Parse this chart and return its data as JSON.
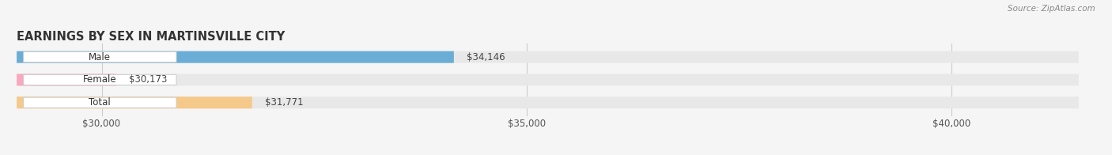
{
  "title": "EARNINGS BY SEX IN MARTINSVILLE CITY",
  "source": "Source: ZipAtlas.com",
  "categories": [
    "Male",
    "Female",
    "Total"
  ],
  "values": [
    34146,
    30173,
    31771
  ],
  "bar_colors": [
    "#6aaed6",
    "#f9a8c0",
    "#f5c98a"
  ],
  "bar_bg_color": "#e8e8e8",
  "xmin": 29000,
  "xmax": 41500,
  "xticks": [
    30000,
    35000,
    40000
  ],
  "xtick_labels": [
    "$30,000",
    "$35,000",
    "$40,000"
  ],
  "title_fontsize": 10.5,
  "bar_height": 0.52,
  "value_fontsize": 8.5,
  "label_fontsize": 8.5,
  "tick_fontsize": 8.5,
  "bg_color": "#f5f5f5"
}
